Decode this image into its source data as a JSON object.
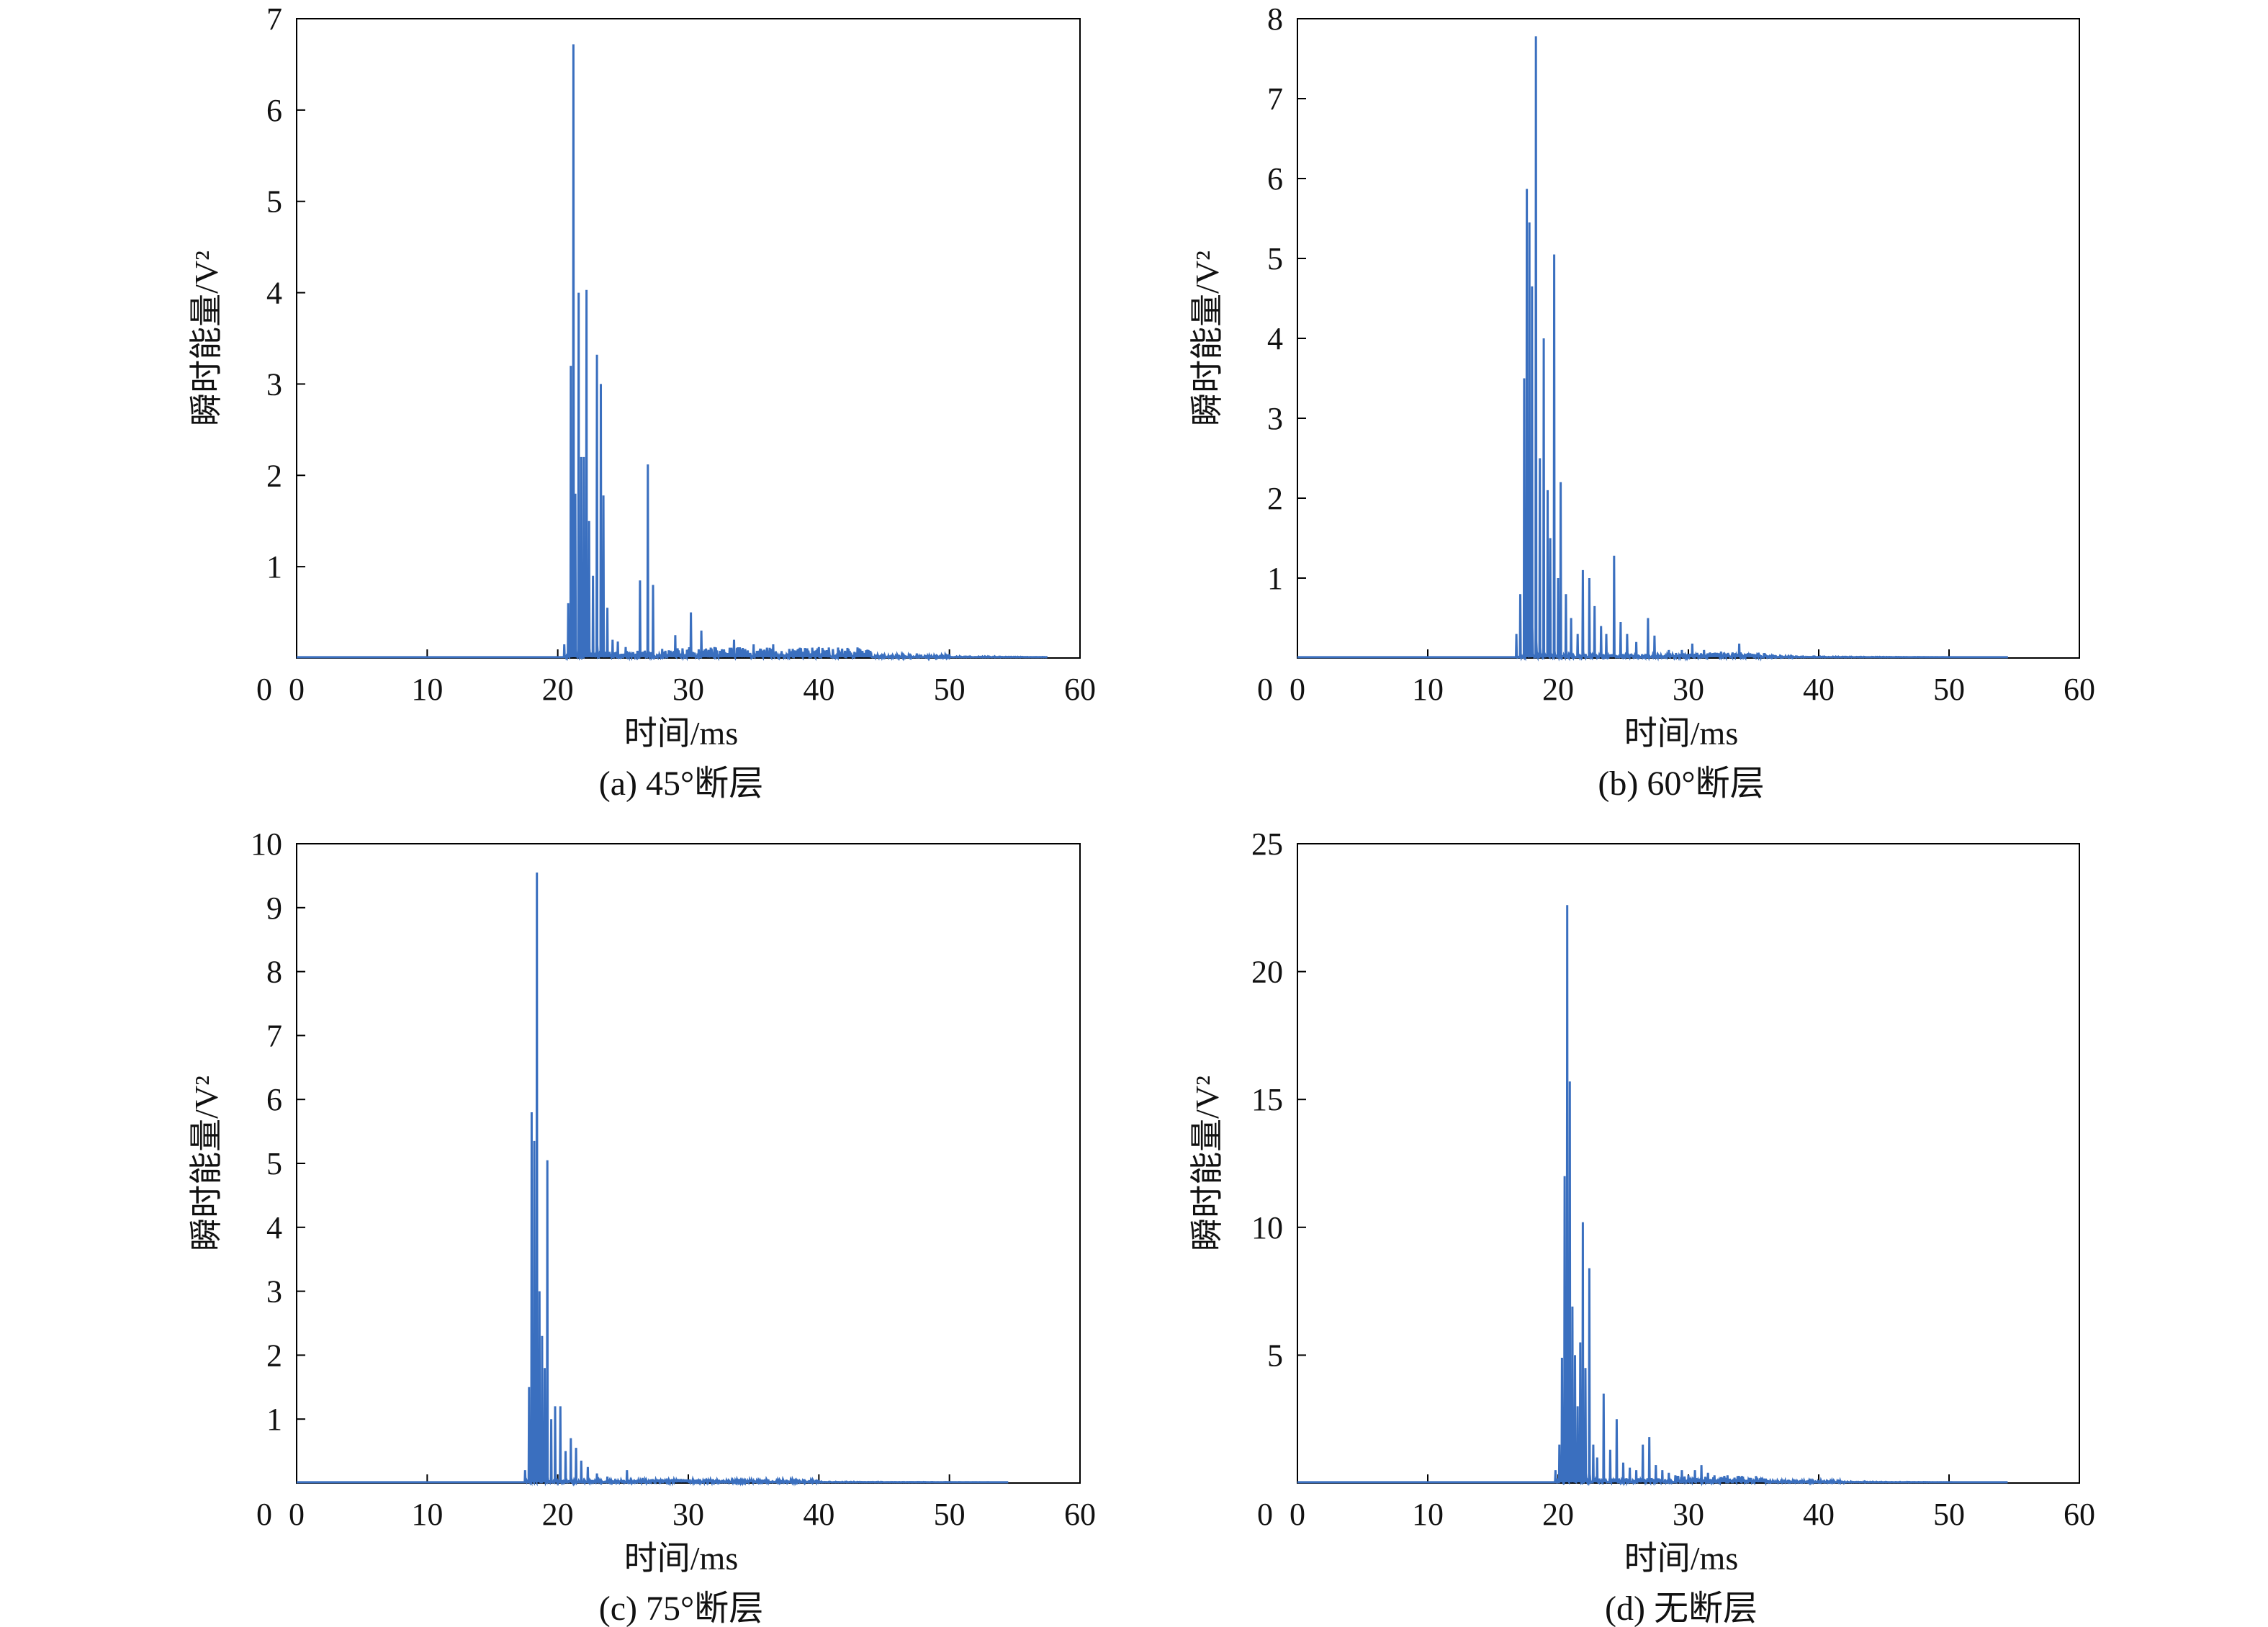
{
  "colors": {
    "series": "#3a6fbf",
    "axis": "#000000"
  },
  "chart_data": [
    {
      "type": "line",
      "caption": "(a) 45°断层",
      "xlabel": "时间/ms",
      "ylabel": "瞬时能量/V²",
      "xlim": [
        0,
        60
      ],
      "ylim": [
        0,
        7
      ],
      "xticks": [
        0,
        10,
        20,
        30,
        40,
        50,
        60
      ],
      "yticks": [
        1,
        2,
        3,
        4,
        5,
        6,
        7
      ],
      "series_end": 57.5,
      "noise": {
        "start": 29,
        "end": 44,
        "level": 0.11
      },
      "peaks": [
        [
          20.5,
          0.15
        ],
        [
          20.8,
          0.6
        ],
        [
          21.0,
          3.2
        ],
        [
          21.2,
          6.72
        ],
        [
          21.35,
          1.8
        ],
        [
          21.6,
          4.0
        ],
        [
          21.8,
          2.2
        ],
        [
          22.0,
          2.2
        ],
        [
          22.2,
          4.03
        ],
        [
          22.4,
          1.5
        ],
        [
          22.7,
          0.9
        ],
        [
          23.0,
          3.32
        ],
        [
          23.3,
          3.0
        ],
        [
          23.5,
          1.78
        ],
        [
          23.8,
          0.55
        ],
        [
          24.2,
          0.2
        ],
        [
          24.6,
          0.18
        ],
        [
          25.2,
          0.12
        ],
        [
          26.3,
          0.85
        ],
        [
          26.9,
          2.12
        ],
        [
          27.3,
          0.8
        ],
        [
          28.0,
          0.1
        ],
        [
          29.0,
          0.25
        ],
        [
          30.2,
          0.5
        ],
        [
          31.0,
          0.3
        ],
        [
          32.0,
          0.12
        ],
        [
          33.5,
          0.2
        ],
        [
          35.0,
          0.15
        ],
        [
          36.5,
          0.15
        ],
        [
          38.0,
          0.1
        ],
        [
          40.0,
          0.12
        ],
        [
          42.0,
          0.08
        ],
        [
          44.0,
          0.06
        ],
        [
          47.5,
          0.05
        ],
        [
          50.0,
          0.04
        ]
      ]
    },
    {
      "type": "line",
      "caption": "(b) 60°断层",
      "xlabel": "时间/ms",
      "ylabel": "瞬时能量/V²",
      "xlim": [
        0,
        60
      ],
      "ylim": [
        0,
        8
      ],
      "xticks": [
        0,
        10,
        20,
        30,
        40,
        50,
        60
      ],
      "yticks": [
        1,
        2,
        3,
        4,
        5,
        6,
        7,
        8
      ],
      "series_end": 54.5,
      "noise": {
        "start": 28,
        "end": 36,
        "level": 0.06
      },
      "peaks": [
        [
          16.8,
          0.3
        ],
        [
          17.1,
          0.8
        ],
        [
          17.4,
          3.5
        ],
        [
          17.6,
          5.87
        ],
        [
          17.8,
          5.45
        ],
        [
          18.0,
          4.65
        ],
        [
          18.3,
          7.78
        ],
        [
          18.6,
          2.5
        ],
        [
          18.9,
          4.0
        ],
        [
          19.2,
          2.1
        ],
        [
          19.4,
          1.5
        ],
        [
          19.7,
          5.05
        ],
        [
          20.0,
          1.0
        ],
        [
          20.2,
          2.2
        ],
        [
          20.6,
          0.8
        ],
        [
          21.0,
          0.5
        ],
        [
          21.5,
          0.3
        ],
        [
          21.9,
          1.1
        ],
        [
          22.4,
          1.0
        ],
        [
          22.8,
          0.65
        ],
        [
          23.3,
          0.4
        ],
        [
          23.7,
          0.3
        ],
        [
          24.3,
          1.28
        ],
        [
          24.8,
          0.45
        ],
        [
          25.3,
          0.3
        ],
        [
          26.0,
          0.2
        ],
        [
          26.9,
          0.5
        ],
        [
          27.4,
          0.28
        ],
        [
          28.5,
          0.1
        ],
        [
          29.5,
          0.1
        ],
        [
          30.3,
          0.18
        ],
        [
          31.2,
          0.1
        ],
        [
          32.5,
          0.08
        ],
        [
          33.9,
          0.18
        ],
        [
          35.0,
          0.05
        ],
        [
          36.5,
          0.04
        ],
        [
          38.0,
          0.03
        ]
      ]
    },
    {
      "type": "line",
      "caption": "(c) 75°断层",
      "xlabel": "时间/ms",
      "ylabel": "瞬时能量/V²",
      "xlim": [
        0,
        60
      ],
      "ylim": [
        0,
        10
      ],
      "xticks": [
        0,
        10,
        20,
        30,
        40,
        50,
        60
      ],
      "yticks": [
        1,
        2,
        3,
        4,
        5,
        6,
        7,
        8,
        9,
        10
      ],
      "series_end": 54.5,
      "noise": {
        "start": 26,
        "end": 40,
        "level": 0.05
      },
      "peaks": [
        [
          17.5,
          0.2
        ],
        [
          17.8,
          1.5
        ],
        [
          18.0,
          5.8
        ],
        [
          18.2,
          5.35
        ],
        [
          18.4,
          9.55
        ],
        [
          18.6,
          3.0
        ],
        [
          18.8,
          2.3
        ],
        [
          19.0,
          1.8
        ],
        [
          19.2,
          5.05
        ],
        [
          19.5,
          1.0
        ],
        [
          19.8,
          1.2
        ],
        [
          20.2,
          1.2
        ],
        [
          20.6,
          0.5
        ],
        [
          21.0,
          0.7
        ],
        [
          21.4,
          0.55
        ],
        [
          21.8,
          0.35
        ],
        [
          22.3,
          0.25
        ],
        [
          23.0,
          0.15
        ],
        [
          23.8,
          0.1
        ],
        [
          25.3,
          0.2
        ],
        [
          26.5,
          0.08
        ],
        [
          28.0,
          0.06
        ],
        [
          30.0,
          0.05
        ],
        [
          32.0,
          0.04
        ],
        [
          35.0,
          0.03
        ]
      ]
    },
    {
      "type": "line",
      "caption": "(d) 无断层",
      "xlabel": "时间/ms",
      "ylabel": "瞬时能量/V²",
      "xlim": [
        0,
        60
      ],
      "ylim": [
        0,
        25
      ],
      "xticks": [
        0,
        10,
        20,
        30,
        40,
        50,
        60
      ],
      "yticks": [
        5,
        10,
        15,
        20,
        25
      ],
      "series_end": 54.5,
      "noise": {
        "start": 29,
        "end": 36,
        "level": 0.25
      },
      "peaks": [
        [
          19.8,
          0.5
        ],
        [
          20.1,
          1.5
        ],
        [
          20.3,
          4.9
        ],
        [
          20.5,
          12.0
        ],
        [
          20.7,
          22.6
        ],
        [
          20.9,
          15.7
        ],
        [
          21.1,
          6.9
        ],
        [
          21.3,
          5.0
        ],
        [
          21.5,
          3.0
        ],
        [
          21.7,
          5.5
        ],
        [
          21.9,
          10.2
        ],
        [
          22.1,
          4.5
        ],
        [
          22.4,
          8.4
        ],
        [
          22.7,
          1.5
        ],
        [
          23.0,
          1.0
        ],
        [
          23.5,
          3.5
        ],
        [
          24.0,
          1.3
        ],
        [
          24.5,
          2.5
        ],
        [
          25.0,
          0.8
        ],
        [
          25.5,
          0.6
        ],
        [
          26.0,
          0.5
        ],
        [
          26.5,
          1.5
        ],
        [
          27.0,
          1.8
        ],
        [
          27.5,
          0.7
        ],
        [
          28.0,
          0.5
        ],
        [
          28.5,
          0.4
        ],
        [
          29.0,
          0.3
        ],
        [
          29.5,
          0.5
        ],
        [
          30.0,
          0.3
        ],
        [
          30.5,
          0.5
        ],
        [
          31.0,
          0.7
        ],
        [
          31.5,
          0.4
        ],
        [
          32.0,
          0.3
        ],
        [
          33.0,
          0.3
        ],
        [
          34.0,
          0.2
        ],
        [
          36.0,
          0.12
        ],
        [
          38.0,
          0.08
        ],
        [
          42.0,
          0.05
        ]
      ]
    }
  ]
}
